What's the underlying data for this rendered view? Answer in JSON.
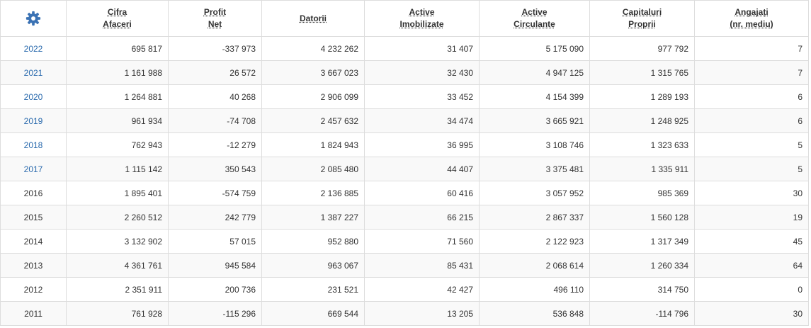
{
  "table": {
    "header": [
      [
        "Cifra",
        "Afaceri"
      ],
      [
        "Profit",
        "Net"
      ],
      [
        "Datorii"
      ],
      [
        "Active",
        "Imobilizate"
      ],
      [
        "Active",
        "Circulante"
      ],
      [
        "Capitaluri",
        "Proprii"
      ],
      [
        "Angajați",
        "(nr. mediu)"
      ]
    ],
    "rows": [
      {
        "year": "2022",
        "link": true,
        "values": [
          "695 817",
          "-337 973",
          "4 232 262",
          "31 407",
          "5 175 090",
          "977 792",
          "7"
        ]
      },
      {
        "year": "2021",
        "link": true,
        "values": [
          "1 161 988",
          "26 572",
          "3 667 023",
          "32 430",
          "4 947 125",
          "1 315 765",
          "7"
        ]
      },
      {
        "year": "2020",
        "link": true,
        "values": [
          "1 264 881",
          "40 268",
          "2 906 099",
          "33 452",
          "4 154 399",
          "1 289 193",
          "6"
        ]
      },
      {
        "year": "2019",
        "link": true,
        "values": [
          "961 934",
          "-74 708",
          "2 457 632",
          "34 474",
          "3 665 921",
          "1 248 925",
          "6"
        ]
      },
      {
        "year": "2018",
        "link": true,
        "values": [
          "762 943",
          "-12 279",
          "1 824 943",
          "36 995",
          "3 108 746",
          "1 323 633",
          "5"
        ]
      },
      {
        "year": "2017",
        "link": true,
        "values": [
          "1 115 142",
          "350 543",
          "2 085 480",
          "44 407",
          "3 375 481",
          "1 335 911",
          "5"
        ]
      },
      {
        "year": "2016",
        "link": false,
        "values": [
          "1 895 401",
          "-574 759",
          "2 136 885",
          "60 416",
          "3 057 952",
          "985 369",
          "30"
        ]
      },
      {
        "year": "2015",
        "link": false,
        "values": [
          "2 260 512",
          "242 779",
          "1 387 227",
          "66 215",
          "2 867 337",
          "1 560 128",
          "19"
        ]
      },
      {
        "year": "2014",
        "link": false,
        "values": [
          "3 132 902",
          "57 015",
          "952 880",
          "71 560",
          "2 122 923",
          "1 317 349",
          "45"
        ]
      },
      {
        "year": "2013",
        "link": false,
        "values": [
          "4 361 761",
          "945 584",
          "963 067",
          "85 431",
          "2 068 614",
          "1 260 334",
          "64"
        ]
      },
      {
        "year": "2012",
        "link": false,
        "values": [
          "2 351 911",
          "200 736",
          "231 521",
          "42 427",
          "496 110",
          "314 750",
          "0"
        ]
      },
      {
        "year": "2011",
        "link": false,
        "values": [
          "761 928",
          "-115 296",
          "669 544",
          "13 205",
          "536 848",
          "-114 796",
          "30"
        ]
      }
    ]
  }
}
